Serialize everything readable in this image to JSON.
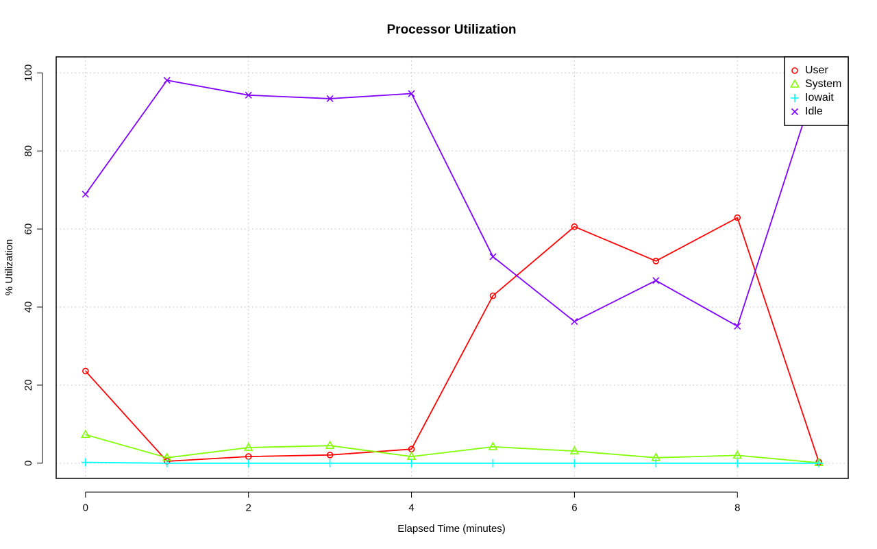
{
  "chart_data": {
    "type": "line",
    "title": "Processor Utilization",
    "xlabel": "Elapsed Time (minutes)",
    "ylabel": "% Utilization",
    "x": [
      0,
      1,
      2,
      3,
      4,
      5,
      6,
      7,
      8,
      9
    ],
    "xlim": [
      -0.36,
      9.36
    ],
    "ylim": [
      -3.9,
      104.1
    ],
    "xticks": [
      0,
      2,
      4,
      6,
      8
    ],
    "yticks": [
      0,
      20,
      40,
      60,
      80,
      100
    ],
    "grid": true,
    "legend_position": "top-right",
    "series": [
      {
        "name": "User",
        "color": "#ff0000",
        "marker": "circle",
        "values": [
          23.6,
          0.5,
          1.7,
          2.1,
          3.6,
          42.9,
          60.6,
          51.8,
          62.9,
          0.3
        ]
      },
      {
        "name": "System",
        "color": "#80ff00",
        "marker": "triangle",
        "values": [
          7.3,
          1.4,
          4.0,
          4.5,
          1.7,
          4.2,
          3.1,
          1.4,
          2.0,
          0.1
        ]
      },
      {
        "name": "Iowait",
        "color": "#00ffff",
        "marker": "plus",
        "values": [
          0.2,
          0.0,
          0.0,
          0.0,
          0.0,
          0.0,
          0.0,
          0.0,
          0.0,
          0.0
        ]
      },
      {
        "name": "Idle",
        "color": "#8000ff",
        "marker": "cross",
        "values": [
          68.9,
          98.1,
          94.3,
          93.4,
          94.7,
          52.9,
          36.3,
          46.8,
          35.1,
          99.6
        ]
      }
    ]
  }
}
